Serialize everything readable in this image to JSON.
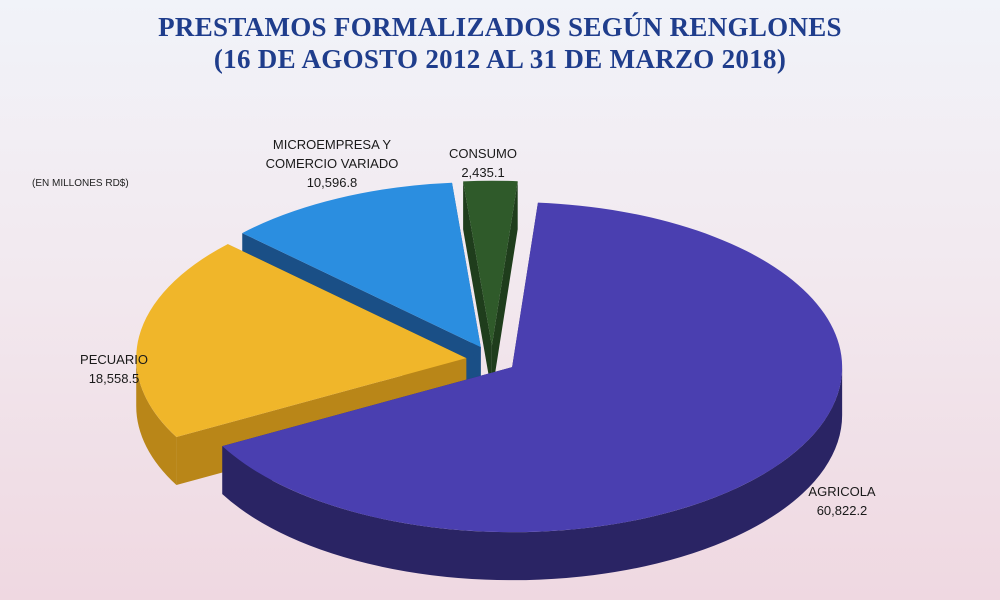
{
  "chart_data": {
    "type": "pie",
    "title": "PRESTAMOS FORMALIZADOS SEGÚN RENGLONES",
    "subtitle": "(16 DE AGOSTO 2012 AL 31 DE MARZO 2018)",
    "unit_note": "(EN MILLONES RD$)",
    "slices": [
      {
        "label_lines": [
          "CONSUMO"
        ],
        "value": 2435.1,
        "value_text": "2,435.1",
        "color": "#2f5a2a",
        "side_color": "#1f3d1c"
      },
      {
        "label_lines": [
          "AGRICOLA"
        ],
        "value": 60822.2,
        "value_text": "60,822.2",
        "color": "#4a3fb0",
        "side_color": "#2a2464"
      },
      {
        "label_lines": [
          "PECUARIO"
        ],
        "value": 18558.5,
        "value_text": "18,558.5",
        "color": "#f0b62a",
        "side_color": "#b98618"
      },
      {
        "label_lines": [
          "MICROEMPRESA  Y",
          "COMERCIO VARIADO"
        ],
        "value": 10596.8,
        "value_text": "10,596.8",
        "color": "#2b8ee0",
        "side_color": "#1a4f86"
      }
    ]
  }
}
